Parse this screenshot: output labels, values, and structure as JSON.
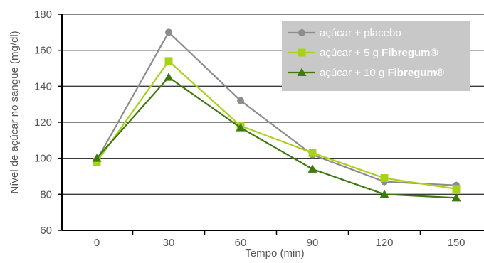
{
  "chart_data": {
    "type": "line",
    "xlabel": "Tempo (min)",
    "ylabel": "Nível de açúcar no sangue (mg/dl)",
    "x": [
      0,
      30,
      60,
      90,
      120,
      150
    ],
    "xlim": [
      0,
      150
    ],
    "ylim": [
      60,
      180
    ],
    "y_ticks": [
      60,
      80,
      100,
      120,
      140,
      160,
      180
    ],
    "x_ticks": [
      0,
      30,
      60,
      90,
      120,
      150
    ],
    "grid": "horizontal",
    "legend_position": "top-right",
    "series": [
      {
        "name": "açúcar + placebo",
        "name_plain": "açúcar + placebo",
        "name_bold": "",
        "color": "#8c8c8c",
        "marker": "circle",
        "values": [
          99,
          170,
          132,
          102,
          87,
          85
        ]
      },
      {
        "name": "açúcar + 5 g Fibregum®",
        "name_plain": "açúcar + 5 g ",
        "name_bold": "Fibregum®",
        "color": "#a8d21a",
        "marker": "square",
        "values": [
          98,
          154,
          118,
          103,
          89,
          83
        ]
      },
      {
        "name": "açúcar + 10 g Fibregum®",
        "name_plain": "açúcar + 10 g ",
        "name_bold": "Fibregum®",
        "color": "#3e7a0e",
        "marker": "triangle",
        "values": [
          100,
          145,
          117,
          94,
          80,
          78
        ]
      }
    ]
  }
}
